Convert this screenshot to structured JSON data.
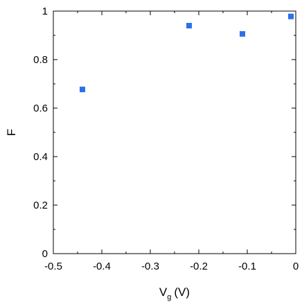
{
  "chart_data": {
    "type": "scatter",
    "title": "",
    "xlabel": "V",
    "xlabel_subscript": "g",
    "xlabel_unit": "(V)",
    "ylabel": "F",
    "xlim": [
      -0.5,
      0
    ],
    "ylim": [
      0,
      1
    ],
    "grid": false,
    "legend": "none",
    "x_ticks": [
      -0.5,
      -0.4,
      -0.3,
      -0.2,
      -0.1,
      0
    ],
    "x_tick_labels": [
      "-0.5",
      "-0.4",
      "-0.3",
      "-0.2",
      "-0.1",
      "0"
    ],
    "y_ticks": [
      0,
      0.2,
      0.4,
      0.6,
      0.8,
      1
    ],
    "y_tick_labels": [
      "0",
      "0.2",
      "0.4",
      "0.6",
      "0.8",
      "1"
    ],
    "series": [
      {
        "marker": "square",
        "color": "#2a72e8",
        "x": [
          -0.44,
          -0.22,
          -0.11,
          -0.01
        ],
        "y": [
          0.677,
          0.94,
          0.906,
          0.978
        ]
      }
    ]
  }
}
